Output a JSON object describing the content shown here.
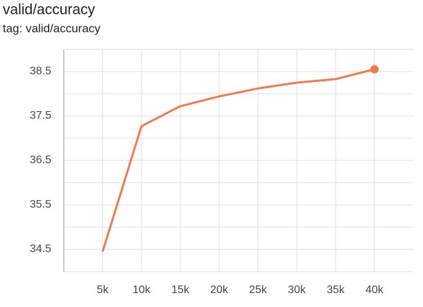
{
  "chart_data": {
    "type": "line",
    "title": "valid/accuracy",
    "subtitle": "tag: valid/accuracy",
    "x": [
      5000,
      10000,
      15000,
      20000,
      25000,
      30000,
      35000,
      40000
    ],
    "series": [
      {
        "name": "valid/accuracy",
        "color": "#ef7a4e",
        "values": [
          34.45,
          37.27,
          37.72,
          37.94,
          38.12,
          38.25,
          38.33,
          38.55
        ]
      }
    ],
    "xlim": [
      0,
      45000
    ],
    "xticks": [
      {
        "value": 5000,
        "label": "5k"
      },
      {
        "value": 10000,
        "label": "10k"
      },
      {
        "value": 15000,
        "label": "15k"
      },
      {
        "value": 20000,
        "label": "20k"
      },
      {
        "value": 25000,
        "label": "25k"
      },
      {
        "value": 30000,
        "label": "30k"
      },
      {
        "value": 35000,
        "label": "35k"
      },
      {
        "value": 40000,
        "label": "40k"
      }
    ],
    "ylim": [
      34,
      39
    ],
    "yticks": [
      34.5,
      35.5,
      36.5,
      37.5,
      38.5
    ],
    "minor_yticks": [
      34,
      35,
      36,
      37,
      38,
      39
    ],
    "grid": true
  }
}
